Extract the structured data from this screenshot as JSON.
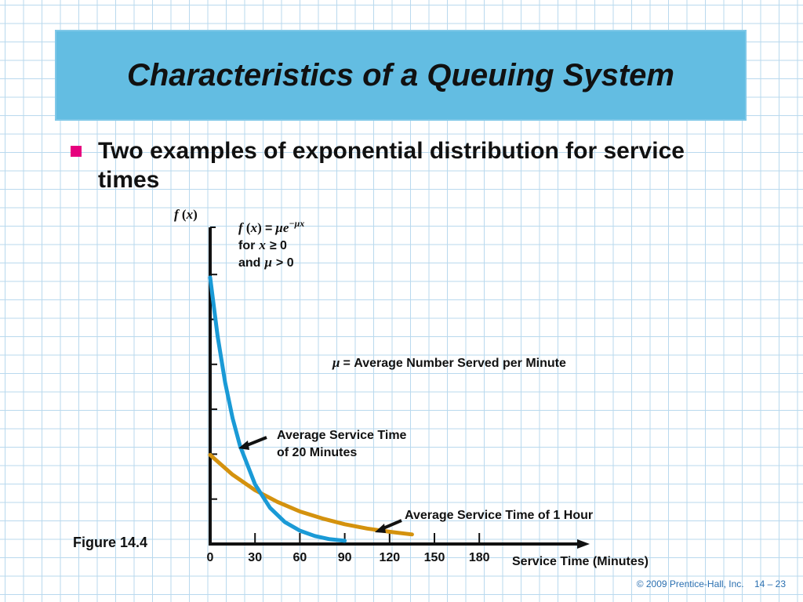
{
  "slide": {
    "title": "Characteristics of a Queuing System",
    "bullet": "Two examples of exponential distribution for service times",
    "figure_label": "Figure 14.4",
    "footer_copyright": "© 2009 Prentice-Hall, Inc.",
    "footer_page": "14 – 23",
    "bullet_color": "#e6007e",
    "title_bg_color": "#63bde2"
  },
  "chart_data": {
    "type": "line",
    "title": "",
    "ylabel_f": "f",
    "ylabel_x": "x",
    "xlabel": "Service Time (Minutes)",
    "x_ticks": [
      0,
      30,
      60,
      90,
      120,
      150,
      180
    ],
    "xlim": [
      0,
      180
    ],
    "formula": {
      "f": "f",
      "x": "x",
      "eq": "=",
      "mu_e": "μe",
      "exp": "−μx",
      "cond1_prefix": "for",
      "cond1_var": "x",
      "cond1_rest": "≥ 0",
      "cond2_prefix": "and",
      "cond2_var": "μ",
      "cond2_rest": "> 0"
    },
    "mu_def": {
      "symbol": "μ",
      "text": "= Average Number Served per Minute"
    },
    "series": [
      {
        "name": "Average Service Time of 20 Minutes",
        "name_line1": "Average Service Time",
        "name_line2": "of 20 Minutes",
        "mean_minutes": 20,
        "color": "#1a9ad6",
        "x": [
          0,
          5,
          10,
          15,
          20,
          30,
          40,
          50,
          60,
          70,
          80,
          90
        ],
        "y": [
          0.05,
          0.039,
          0.0303,
          0.0236,
          0.0184,
          0.0112,
          0.0068,
          0.0041,
          0.0025,
          0.0015,
          0.0009,
          0.0006
        ]
      },
      {
        "name": "Average Service Time of 1 Hour",
        "mean_minutes": 60,
        "color": "#d4920e",
        "x": [
          0,
          15,
          30,
          45,
          60,
          75,
          90,
          105,
          120,
          135
        ],
        "y": [
          0.0167,
          0.013,
          0.0101,
          0.0079,
          0.0061,
          0.0048,
          0.0037,
          0.0029,
          0.0023,
          0.0018
        ]
      }
    ]
  }
}
